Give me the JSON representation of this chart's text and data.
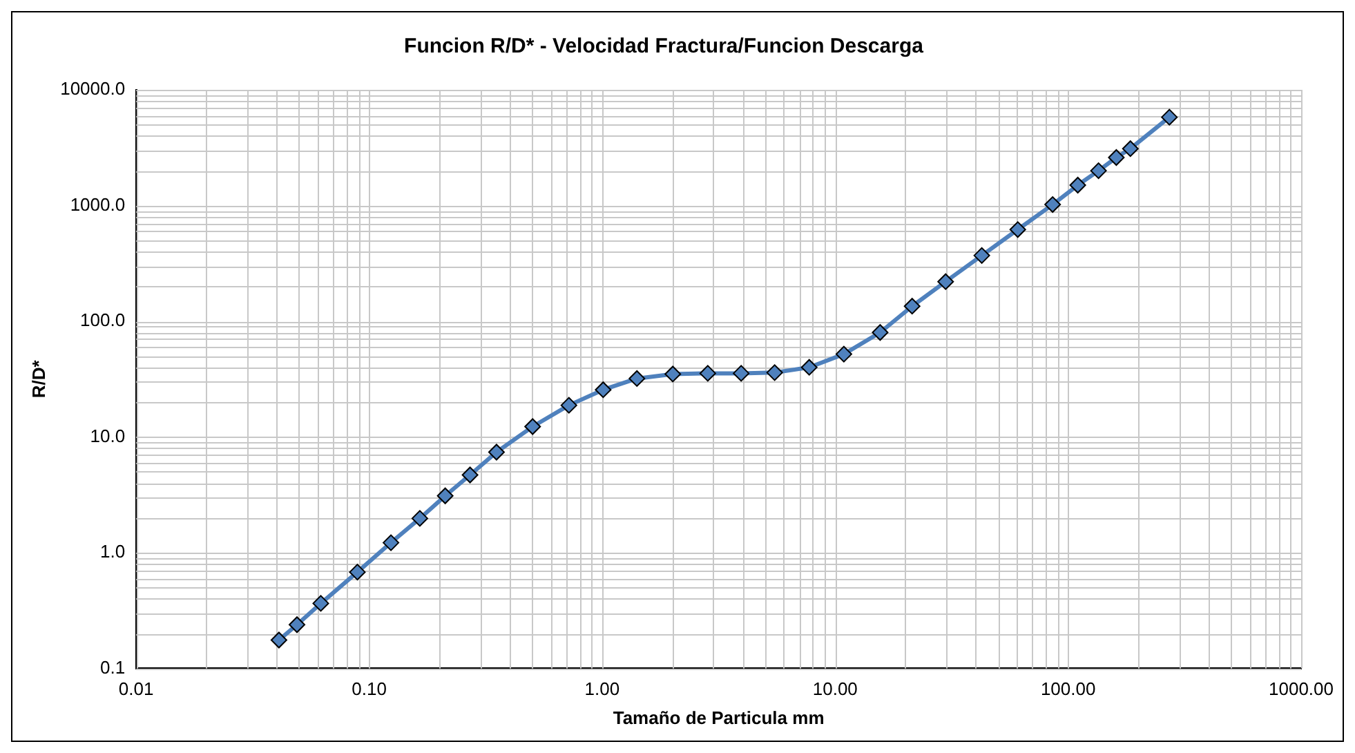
{
  "chart_data": {
    "type": "line",
    "title": "Funcion R/D* - Velocidad Fractura/Funcion Descarga",
    "xlabel": "Tamaño de Particula mm",
    "ylabel": "R/D*",
    "x": [
      0.041,
      0.049,
      0.062,
      0.089,
      0.124,
      0.165,
      0.212,
      0.271,
      0.352,
      0.503,
      0.72,
      1.01,
      1.41,
      2.01,
      2.84,
      3.95,
      5.5,
      7.74,
      10.9,
      15.6,
      21.4,
      29.8,
      42.6,
      60.8,
      85.8,
      110,
      135,
      161,
      185,
      272
    ],
    "series": [
      {
        "color": "#4f81bd",
        "values": [
          0.176,
          0.239,
          0.365,
          0.68,
          1.22,
          1.98,
          3.1,
          4.7,
          7.4,
          12.3,
          18.8,
          25.6,
          32,
          35,
          35.5,
          35.5,
          36,
          40,
          52,
          80,
          135,
          220,
          370,
          620,
          1020,
          1500,
          2000,
          2600,
          3100,
          5800
        ]
      }
    ],
    "log": "xy",
    "xlim": [
      0.01,
      1000
    ],
    "ylim": [
      0.1,
      10000
    ],
    "xticks": [
      {
        "value": 0.01,
        "label": "0.01"
      },
      {
        "value": 0.1,
        "label": "0.10"
      },
      {
        "value": 1,
        "label": "1.00"
      },
      {
        "value": 10,
        "label": "10.00"
      },
      {
        "value": 100,
        "label": "100.00"
      },
      {
        "value": 1000,
        "label": "1000.00"
      }
    ],
    "yticks": [
      {
        "value": 0.1,
        "label": "0.1"
      },
      {
        "value": 1,
        "label": "1.0"
      },
      {
        "value": 10,
        "label": "10.0"
      },
      {
        "value": 100,
        "label": "100.0"
      },
      {
        "value": 1000,
        "label": "1000.0"
      },
      {
        "value": 10000,
        "label": "10000.0"
      }
    ],
    "grid": true,
    "legend": false,
    "marker": "diamond",
    "line_style": "solid"
  }
}
